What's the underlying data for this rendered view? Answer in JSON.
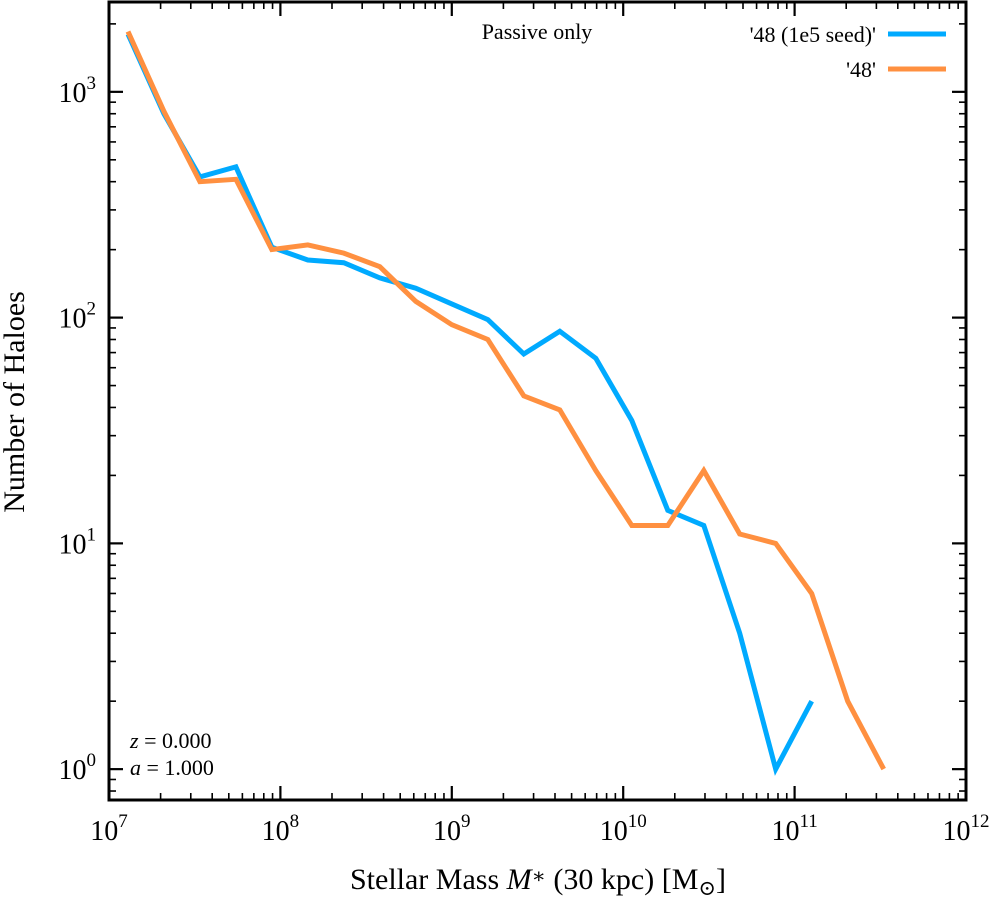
{
  "chart_data": {
    "type": "line",
    "xlabel_prefix": "Stellar Mass ",
    "xlabel_symbol": "M",
    "xlabel_symbol_sub": "∗",
    "xlabel_middle": " (30 kpc) [M",
    "xlabel_sun": "⊙",
    "xlabel_suffix": "]",
    "ylabel": "Number of Haloes",
    "xscale": "log",
    "yscale": "log",
    "xlim": [
      10000000,
      1000000000000
    ],
    "ylim": [
      0.73,
      2500
    ],
    "x_ticks": [
      {
        "base": "10",
        "exp": "7",
        "value": 10000000
      },
      {
        "base": "10",
        "exp": "8",
        "value": 100000000
      },
      {
        "base": "10",
        "exp": "9",
        "value": 1000000000
      },
      {
        "base": "10",
        "exp": "10",
        "value": 10000000000
      },
      {
        "base": "10",
        "exp": "11",
        "value": 100000000000
      },
      {
        "base": "10",
        "exp": "12",
        "value": 1000000000000
      }
    ],
    "y_ticks": [
      {
        "base": "10",
        "exp": "0",
        "value": 1
      },
      {
        "base": "10",
        "exp": "1",
        "value": 10
      },
      {
        "base": "10",
        "exp": "2",
        "value": 100
      },
      {
        "base": "10",
        "exp": "3",
        "value": 1000
      }
    ],
    "annotation_top": "Passive only",
    "annotation_z_var": "z",
    "annotation_z_val": " = 0.000",
    "annotation_a_var": "a",
    "annotation_a_val": " = 1.000",
    "legend_position": "top-right",
    "series": [
      {
        "name": "'48 (1e5 seed)'",
        "color": "#00aaff",
        "x": [
          12900000,
          20900000,
          33900000,
          55000000,
          89100000,
          144500000,
          234400000,
          380200000,
          616600000,
          1000000000,
          1622000000,
          2630000000,
          4266000000,
          6918000000,
          11220000000,
          18200000000,
          29510000000,
          47860000000,
          77620000000,
          125900000000
        ],
        "y": [
          1800,
          800,
          420,
          465,
          205,
          180,
          175,
          150,
          135,
          115,
          98,
          69,
          87,
          66,
          35,
          14,
          12,
          4,
          1,
          2
        ]
      },
      {
        "name": "'48'",
        "color": "#ff9040",
        "x": [
          12900000,
          20900000,
          33900000,
          55000000,
          89100000,
          144500000,
          234400000,
          380200000,
          616600000,
          1000000000,
          1622000000,
          2630000000,
          4266000000,
          6918000000,
          11220000000,
          18200000000,
          29510000000,
          47860000000,
          77620000000,
          125900000000,
          204200000000,
          331100000000
        ],
        "y": [
          1850,
          820,
          400,
          410,
          200,
          210,
          193,
          168,
          118,
          93,
          80,
          45,
          39,
          21,
          12,
          12,
          21,
          11,
          10,
          6,
          2,
          1
        ]
      }
    ]
  }
}
